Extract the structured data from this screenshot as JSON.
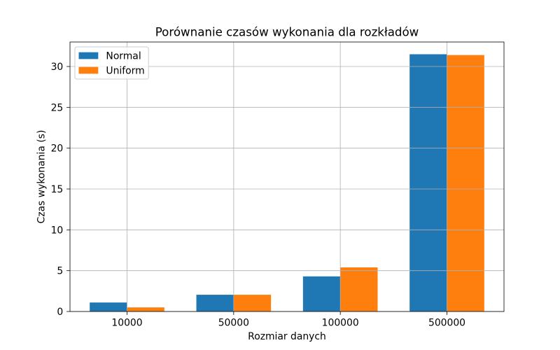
{
  "chart_data": {
    "type": "bar",
    "title": "Porównanie czasów wykonania dla rozkładów",
    "xlabel": "Rozmiar danych",
    "ylabel": "Czas wykonania (s)",
    "categories": [
      "10000",
      "50000",
      "100000",
      "500000"
    ],
    "series": [
      {
        "name": "Normal",
        "color": "#1f77b4",
        "values": [
          1.1,
          2.05,
          4.3,
          31.5
        ]
      },
      {
        "name": "Uniform",
        "color": "#ff7f0e",
        "values": [
          0.5,
          2.05,
          5.4,
          31.4
        ]
      }
    ],
    "yticks": [
      0,
      5,
      10,
      15,
      20,
      25,
      30
    ],
    "ylim": [
      0,
      33
    ],
    "grid": true,
    "legend_position": "top-left"
  }
}
